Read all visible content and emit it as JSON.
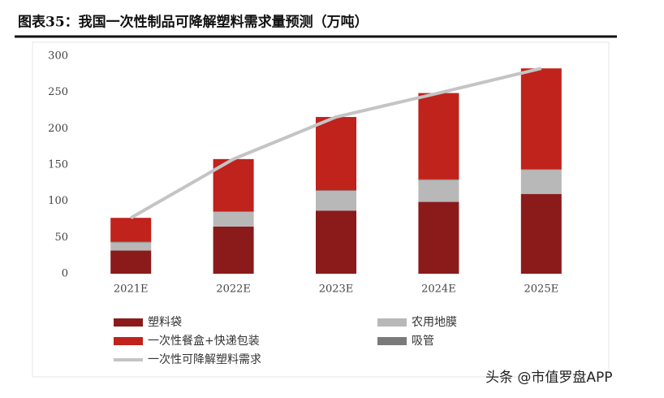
{
  "chart_data": {
    "type": "bar",
    "stacked": true,
    "title": "图表35：我国一次性制品可降解塑料需求量预测（万吨）",
    "watermark": "头条 @市值罗盘APP",
    "categories": [
      "2021E",
      "2022E",
      "2023E",
      "2024E",
      "2025E"
    ],
    "ylim": [
      0,
      300
    ],
    "yticks": [
      0,
      50,
      100,
      150,
      200,
      250,
      300
    ],
    "series": [
      {
        "name": "塑料袋",
        "color": "#8b1a1a",
        "values": [
          32,
          65,
          87,
          99,
          110
        ]
      },
      {
        "name": "农用地膜",
        "color": "#b8b8b8",
        "values": [
          11,
          20,
          27,
          30,
          33
        ]
      },
      {
        "name": "吸管",
        "color": "#7a7a7a",
        "values": [
          1,
          1,
          1,
          1,
          1
        ]
      },
      {
        "name": "一次性餐盒+快递包装",
        "color": "#c0221c",
        "values": [
          33,
          72,
          101,
          119,
          139
        ]
      },
      {
        "name": "一次性可降解塑料需求",
        "type": "line",
        "color": "#c4c4c4",
        "values": [
          77,
          158,
          216,
          249,
          283
        ]
      }
    ]
  }
}
